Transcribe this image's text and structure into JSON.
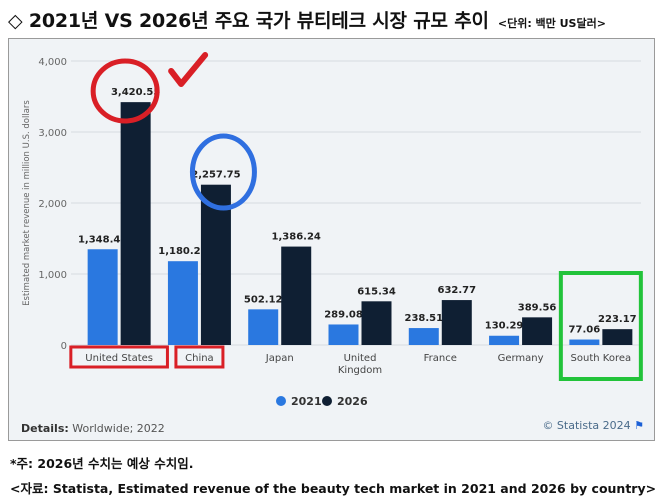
{
  "header": {
    "title": "◇ 2021년 VS 2026년 주요 국가 뷰티테크 시장 규모 추이",
    "unit": "<단위: 백만 US달러>"
  },
  "chart_data": {
    "type": "bar",
    "title": "",
    "ylabel": "Estimated market revenue in million U.S. dollars",
    "ylim": [
      0,
      4000
    ],
    "yticks": [
      0,
      1000,
      2000,
      3000,
      4000
    ],
    "ytick_labels": [
      "0",
      "1,000",
      "2,000",
      "3,000",
      "4,000"
    ],
    "categories": [
      "United States",
      "China",
      "Japan",
      "United Kingdom",
      "France",
      "Germany",
      "South Korea"
    ],
    "category_lines": [
      [
        "United States"
      ],
      [
        "China"
      ],
      [
        "Japan"
      ],
      [
        "United",
        "Kingdom"
      ],
      [
        "France"
      ],
      [
        "Germany"
      ],
      [
        "South Korea"
      ]
    ],
    "series": [
      {
        "name": "2021",
        "color": "#2a78e0",
        "values": [
          1348.44,
          1180.24,
          502.12,
          289.08,
          238.51,
          130.29,
          77.06
        ],
        "labels": [
          "1,348.44",
          "1,180.24",
          "502.12",
          "289.08",
          "238.51",
          "130.29",
          "77.06"
        ]
      },
      {
        "name": "2026",
        "color": "#0f1f33",
        "values": [
          3420.55,
          2257.75,
          1386.24,
          615.34,
          632.77,
          389.56,
          223.17
        ],
        "labels": [
          "3,420.55",
          "2,257.75",
          "1,386.24",
          "615.34",
          "632.77",
          "389.56",
          "223.17"
        ]
      }
    ],
    "legend": "bottom",
    "grid": true,
    "highlights": {
      "red_label_boxes": [
        "United States",
        "China"
      ],
      "green_box": "South Korea",
      "red_circle": "United States 2026",
      "blue_circle": "China 2026",
      "checkmark": "red"
    },
    "colors": {
      "highlight_red": "#d91f26",
      "highlight_blue": "#2f6fe0",
      "highlight_green": "#22c33a"
    }
  },
  "footer": {
    "details_label": "Details:",
    "details_value": "Worldwide; 2022",
    "credit": "© Statista 2024",
    "note": "*주: 2026년 수치는 예상 수치임.",
    "source": "<자료: Statista, Estimated revenue of the beauty tech market in 2021 and 2026 by country>"
  }
}
